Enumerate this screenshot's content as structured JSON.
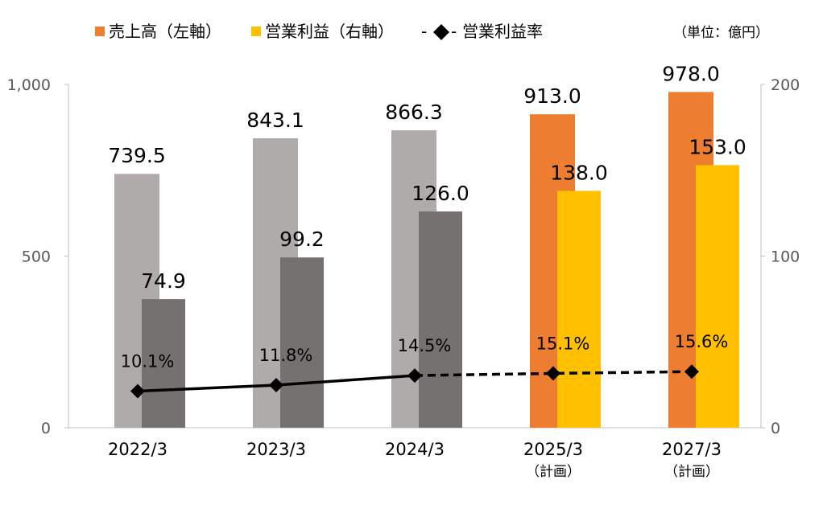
{
  "chart_data": {
    "type": "bar",
    "unit_note": "（単位：億円）",
    "categories": [
      "2022/3",
      "2023/3",
      "2024/3",
      "2025/3",
      "2027/3"
    ],
    "category_sublabels": [
      "",
      "",
      "",
      "（計画）",
      "（計画）"
    ],
    "y_left": {
      "ticks": [
        "0",
        "500",
        "1,000"
      ],
      "tick_values": [
        0,
        500,
        1000
      ],
      "ylim": [
        0,
        1000
      ]
    },
    "y_right": {
      "ticks": [
        "0",
        "100",
        "200"
      ],
      "tick_values": [
        0,
        100,
        200
      ],
      "ylim": [
        0,
        200
      ]
    },
    "grid": false,
    "legend_position": "top",
    "series": [
      {
        "name": "売上高（左軸）",
        "kind": "bar",
        "axis": "left",
        "values": [
          739.5,
          843.1,
          866.3,
          913.0,
          978.0
        ],
        "labels": [
          "739.5",
          "843.1",
          "866.3",
          "913.0",
          "978.0"
        ],
        "colors": [
          "#afabab",
          "#afabab",
          "#afabab",
          "#ed7d31",
          "#ed7d31"
        ],
        "legend_color": "#ed7d31"
      },
      {
        "name": "営業利益（右軸）",
        "kind": "bar",
        "axis": "right",
        "values": [
          74.9,
          99.2,
          126.0,
          138.0,
          153.0
        ],
        "labels": [
          "74.9",
          "99.2",
          "126.0",
          "138.0",
          "153.0"
        ],
        "colors": [
          "#767171",
          "#767171",
          "#767171",
          "#ffc000",
          "#ffc000"
        ],
        "legend_color": "#ffc000"
      },
      {
        "name": "営業利益率",
        "legend_prefix": "-",
        "legend_suffix": "-",
        "kind": "line",
        "values": [
          10.1,
          11.8,
          14.5,
          15.1,
          15.6
        ],
        "labels": [
          "10.1%",
          "11.8%",
          "14.5%",
          "15.1%",
          "15.6%"
        ],
        "color": "#000000",
        "dashed_from_index": 2
      }
    ]
  }
}
